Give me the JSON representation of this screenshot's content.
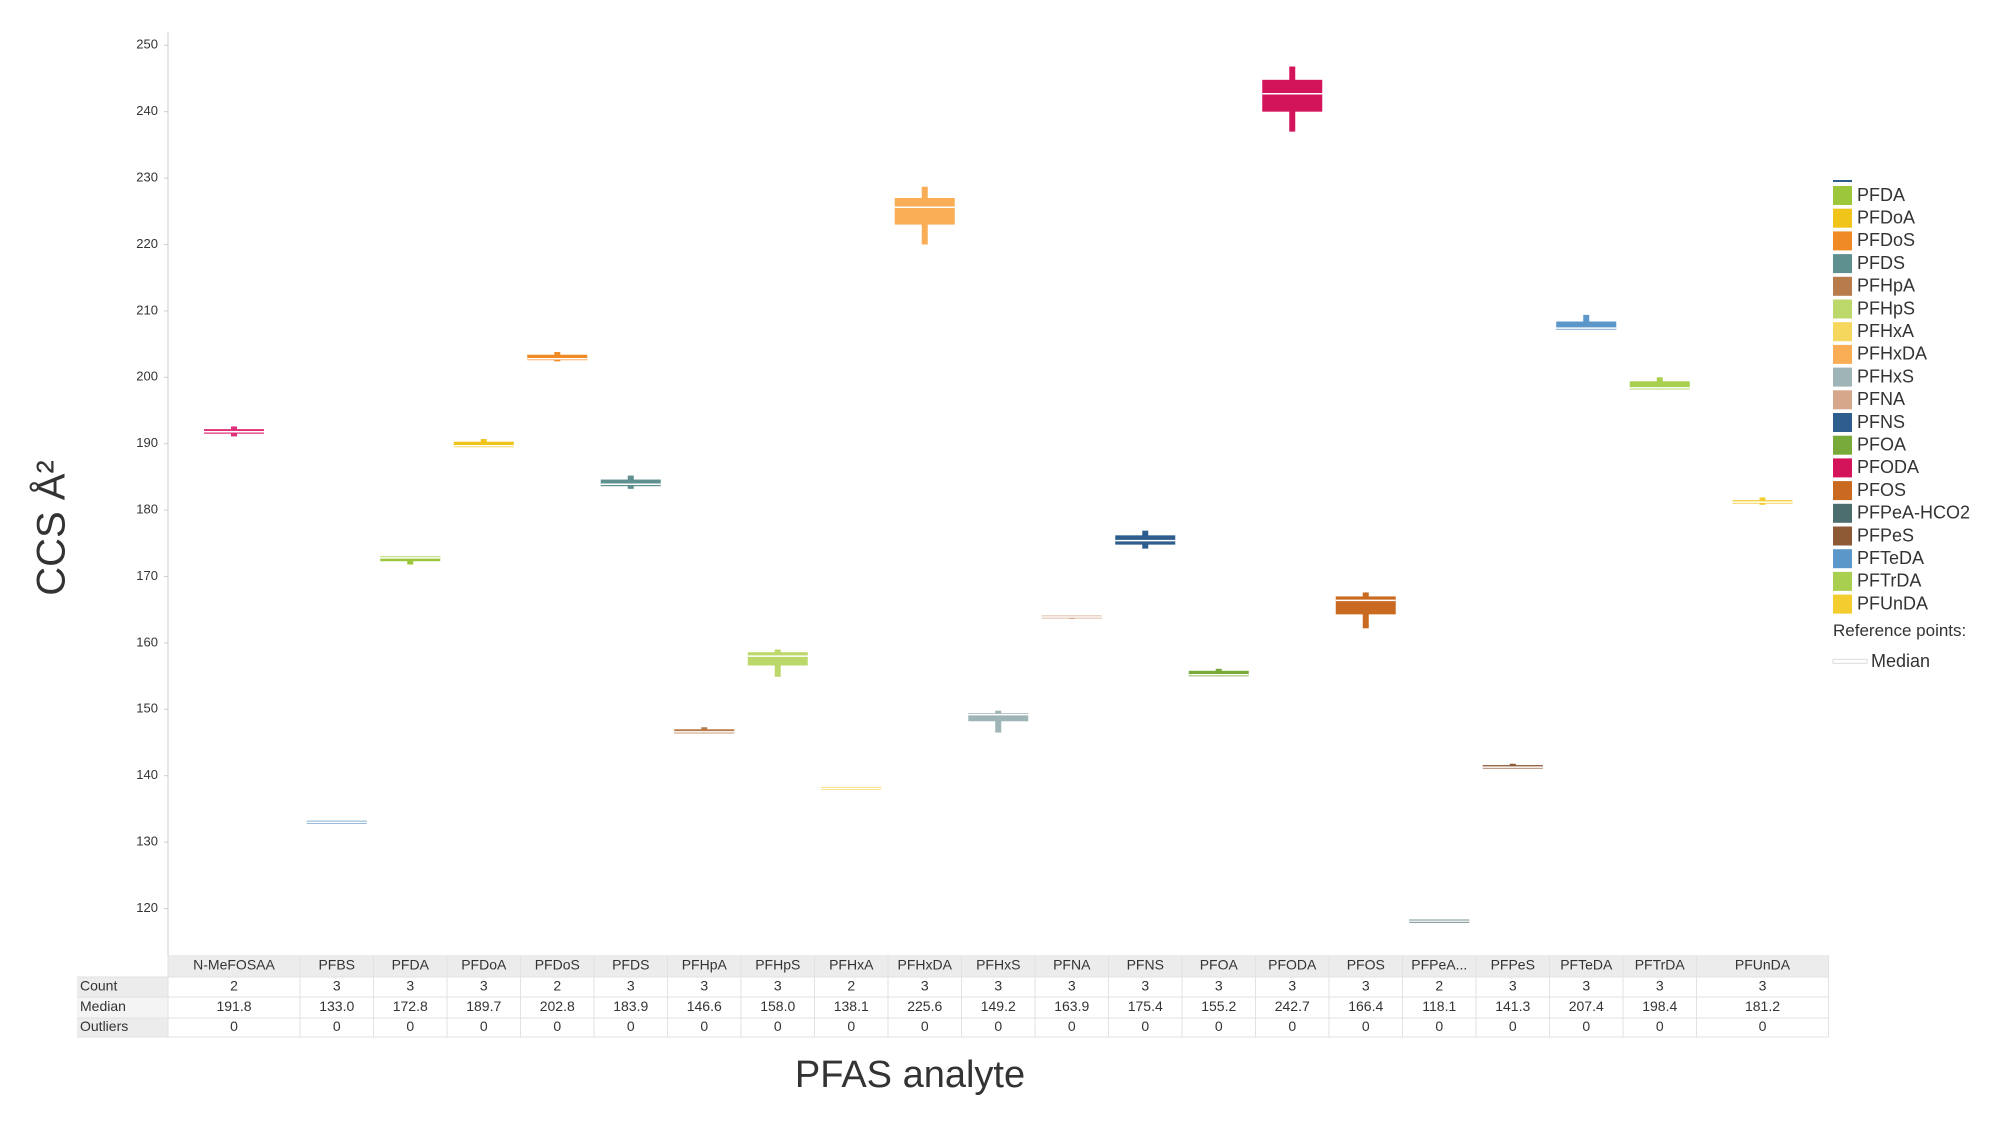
{
  "chart_data": {
    "type": "box",
    "y_label": "CCS Å²",
    "x_label": "PFAS analyte",
    "categories": [
      "N-MeFOSAA",
      "PFBS",
      "PFDA",
      "PFDoA",
      "PFDoS",
      "PFDS",
      "PFHpA",
      "PFHpS",
      "PFHxA",
      "PFHxDA",
      "PFHxS",
      "PFNA",
      "PFNS",
      "PFOA",
      "PFODA",
      "PFOS",
      "PFPeA...",
      "PFPeS",
      "PFTeDA",
      "PFTrDA",
      "PFUnDA"
    ],
    "colors": [
      "#e0307a",
      "#6a9ccc",
      "#9dc73b",
      "#f0c419",
      "#f08a24",
      "#5f9090",
      "#b87c4c",
      "#bcd76a",
      "#f5d75e",
      "#f9ad55",
      "#9fb4b6",
      "#d6a78a",
      "#2e5e8e",
      "#78aa3a",
      "#d4145a",
      "#c96a20",
      "#4c6e6e",
      "#8e5a35",
      "#5b97c8",
      "#a9cf50",
      "#f3cc30"
    ],
    "min": [
      191.1,
      133.0,
      171.8,
      189.6,
      202.4,
      183.2,
      146.4,
      154.9,
      138.1,
      220.0,
      146.5,
      163.6,
      174.2,
      155.0,
      237.0,
      162.2,
      118.1,
      141.2,
      207.2,
      198.2,
      180.8
    ],
    "q1": [
      191.5,
      133.0,
      172.3,
      189.7,
      202.6,
      183.6,
      146.6,
      156.6,
      138.1,
      223.0,
      148.2,
      163.7,
      174.8,
      155.0,
      240.0,
      164.3,
      118.1,
      141.3,
      207.4,
      198.4,
      181.0
    ],
    "median": [
      191.8,
      133.0,
      172.8,
      189.7,
      202.8,
      183.9,
      146.6,
      158.0,
      138.1,
      225.6,
      149.2,
      163.9,
      175.4,
      155.2,
      242.7,
      166.4,
      118.1,
      141.3,
      207.4,
      198.4,
      181.2
    ],
    "q3": [
      192.2,
      133.2,
      172.9,
      190.3,
      203.4,
      184.6,
      147.0,
      158.6,
      138.1,
      227.0,
      149.3,
      163.9,
      176.2,
      155.8,
      244.8,
      167.0,
      118.1,
      141.6,
      208.4,
      199.4,
      181.5
    ],
    "max": [
      192.6,
      133.2,
      173.0,
      190.7,
      203.8,
      185.2,
      147.3,
      159.0,
      138.1,
      228.7,
      149.8,
      164.0,
      176.9,
      156.1,
      246.8,
      167.6,
      118.1,
      141.8,
      209.4,
      200.0,
      181.9
    ],
    "median_labels": [
      "191.8",
      "133.0",
      "172.8",
      "189.7",
      "202.8",
      "183.9",
      "146.6",
      "158.0",
      "138.1",
      "225.6",
      "149.2",
      "163.9",
      "175.4",
      "155.2",
      "242.7",
      "166.4",
      "118.1",
      "141.3",
      "207.4",
      "198.4",
      "181.2"
    ],
    "counts": [
      2,
      3,
      3,
      3,
      2,
      3,
      3,
      3,
      2,
      3,
      3,
      3,
      3,
      3,
      3,
      3,
      2,
      3,
      3,
      3,
      3
    ],
    "outliers": [
      0,
      0,
      0,
      0,
      0,
      0,
      0,
      0,
      0,
      0,
      0,
      0,
      0,
      0,
      0,
      0,
      0,
      0,
      0,
      0,
      0
    ],
    "table_rows": [
      "Count",
      "Median",
      "Outliers"
    ],
    "ylim": [
      113,
      252
    ],
    "yticks": [
      120,
      130,
      140,
      150,
      160,
      170,
      180,
      190,
      200,
      210,
      220,
      230,
      240,
      250
    ],
    "grid": false,
    "legend": [
      {
        "name": "PFDA",
        "color": "#9dc73b"
      },
      {
        "name": "PFDoA",
        "color": "#f0c419"
      },
      {
        "name": "PFDoS",
        "color": "#f08a24"
      },
      {
        "name": "PFDS",
        "color": "#5f9090"
      },
      {
        "name": "PFHpA",
        "color": "#b87c4c"
      },
      {
        "name": "PFHpS",
        "color": "#bcd76a"
      },
      {
        "name": "PFHxA",
        "color": "#f5d75e"
      },
      {
        "name": "PFHxDA",
        "color": "#f9ad55"
      },
      {
        "name": "PFHxS",
        "color": "#9fb4b6"
      },
      {
        "name": "PFNA",
        "color": "#d6a78a"
      },
      {
        "name": "PFNS",
        "color": "#2e5e8e"
      },
      {
        "name": "PFOA",
        "color": "#78aa3a"
      },
      {
        "name": "PFODA",
        "color": "#d4145a"
      },
      {
        "name": "PFOS",
        "color": "#c96a20"
      },
      {
        "name": "PFPeA-HCO2",
        "color": "#4c6e6e"
      },
      {
        "name": "PFPeS",
        "color": "#8e5a35"
      },
      {
        "name": "PFTeDA",
        "color": "#5b97c8"
      },
      {
        "name": "PFTrDA",
        "color": "#a9cf50"
      },
      {
        "name": "PFUnDA",
        "color": "#f3cc30"
      }
    ],
    "legend_title": "Reference points:",
    "reference_label": "Median"
  }
}
